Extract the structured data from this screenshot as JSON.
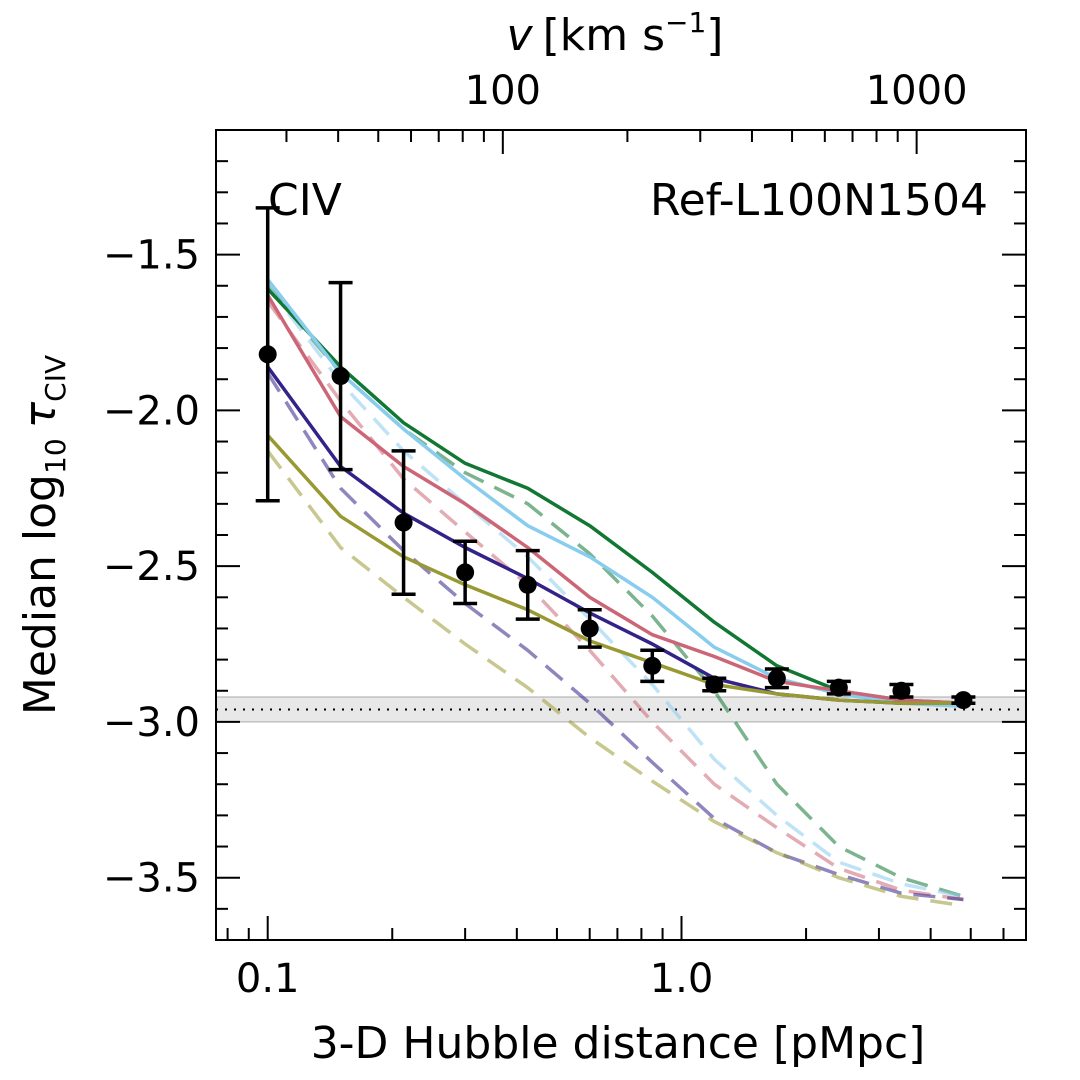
{
  "chart_data": {
    "type": "line",
    "xscale": "log",
    "xlabel": "3-D Hubble distance [pMpc]",
    "xlim": [
      0.075,
      6.8
    ],
    "x_ticks": [
      0.1,
      1.0
    ],
    "x_tick_labels": [
      "0.1",
      "1.0"
    ],
    "top_axis": {
      "label_main": "v",
      "label_units": "[km s",
      "label_sup": "−1",
      "label_close": "]",
      "ticks": [
        100,
        1000
      ],
      "tick_labels": [
        "100",
        "1000"
      ]
    },
    "ylabel": "Median log",
    "ylabel_sub10": "10",
    "ylabel_tau": "τ",
    "ylabel_subion": "CIV",
    "ylim": [
      -3.7,
      -1.1
    ],
    "y_ticks": [
      -1.5,
      -2.0,
      -2.5,
      -3.0,
      -3.5
    ],
    "y_tick_labels": [
      "−1.5",
      "−2.0",
      "−2.5",
      "−3.0",
      "−3.5"
    ],
    "annotations": {
      "ion": "CIV",
      "simulation": "Ref-L100N1504"
    },
    "background_band": {
      "center": -2.96,
      "halfwidth": 0.04,
      "color": "#d9d9d9"
    },
    "x": [
      0.1,
      0.15,
      0.213,
      0.3,
      0.425,
      0.6,
      0.85,
      1.2,
      1.7,
      2.4,
      3.4,
      4.8
    ],
    "points": {
      "y": [
        -1.82,
        -1.89,
        -2.36,
        -2.52,
        -2.56,
        -2.7,
        -2.82,
        -2.88,
        -2.86,
        -2.89,
        -2.9,
        -2.93
      ],
      "yerr": [
        0.47,
        0.3,
        0.23,
        0.1,
        0.11,
        0.06,
        0.05,
        0.02,
        0.03,
        0.02,
        0.02,
        0.01
      ]
    },
    "series": [
      {
        "style": "solid",
        "color": "#117733",
        "values": [
          -1.61,
          -1.86,
          -2.04,
          -2.17,
          -2.25,
          -2.37,
          -2.52,
          -2.68,
          -2.82,
          -2.9,
          -2.93,
          -2.94
        ]
      },
      {
        "style": "solid",
        "color": "#88ccee",
        "values": [
          -1.58,
          -1.88,
          -2.06,
          -2.22,
          -2.37,
          -2.47,
          -2.6,
          -2.76,
          -2.86,
          -2.91,
          -2.94,
          -2.95
        ]
      },
      {
        "style": "solid",
        "color": "#cc6677",
        "values": [
          -1.63,
          -2.02,
          -2.18,
          -2.3,
          -2.44,
          -2.6,
          -2.72,
          -2.79,
          -2.87,
          -2.9,
          -2.93,
          -2.94
        ]
      },
      {
        "style": "solid",
        "color": "#332288",
        "values": [
          -1.86,
          -2.18,
          -2.33,
          -2.44,
          -2.54,
          -2.65,
          -2.75,
          -2.86,
          -2.91,
          -2.93,
          -2.94,
          -2.94
        ]
      },
      {
        "style": "solid",
        "color": "#999933",
        "values": [
          -2.08,
          -2.34,
          -2.47,
          -2.56,
          -2.64,
          -2.74,
          -2.81,
          -2.88,
          -2.91,
          -2.93,
          -2.94,
          -2.94
        ]
      },
      {
        "style": "dashed",
        "color": "#117733",
        "values": [
          -1.6,
          -1.88,
          -2.06,
          -2.2,
          -2.3,
          -2.46,
          -2.66,
          -2.9,
          -3.2,
          -3.4,
          -3.5,
          -3.56
        ]
      },
      {
        "style": "dashed",
        "color": "#88ccee",
        "values": [
          -1.6,
          -1.91,
          -2.13,
          -2.3,
          -2.47,
          -2.67,
          -2.88,
          -3.12,
          -3.3,
          -3.45,
          -3.52,
          -3.56
        ]
      },
      {
        "style": "dashed",
        "color": "#cc6677",
        "values": [
          -1.65,
          -1.97,
          -2.22,
          -2.39,
          -2.56,
          -2.77,
          -3.0,
          -3.2,
          -3.34,
          -3.47,
          -3.54,
          -3.57
        ]
      },
      {
        "style": "dashed",
        "color": "#332288",
        "values": [
          -1.88,
          -2.25,
          -2.45,
          -2.62,
          -2.77,
          -2.94,
          -3.13,
          -3.31,
          -3.42,
          -3.49,
          -3.55,
          -3.57
        ]
      },
      {
        "style": "dashed",
        "color": "#999933",
        "values": [
          -2.13,
          -2.44,
          -2.6,
          -2.75,
          -2.89,
          -3.05,
          -3.19,
          -3.32,
          -3.42,
          -3.5,
          -3.56,
          -3.59
        ]
      }
    ],
    "grid": false,
    "legend": "none"
  }
}
